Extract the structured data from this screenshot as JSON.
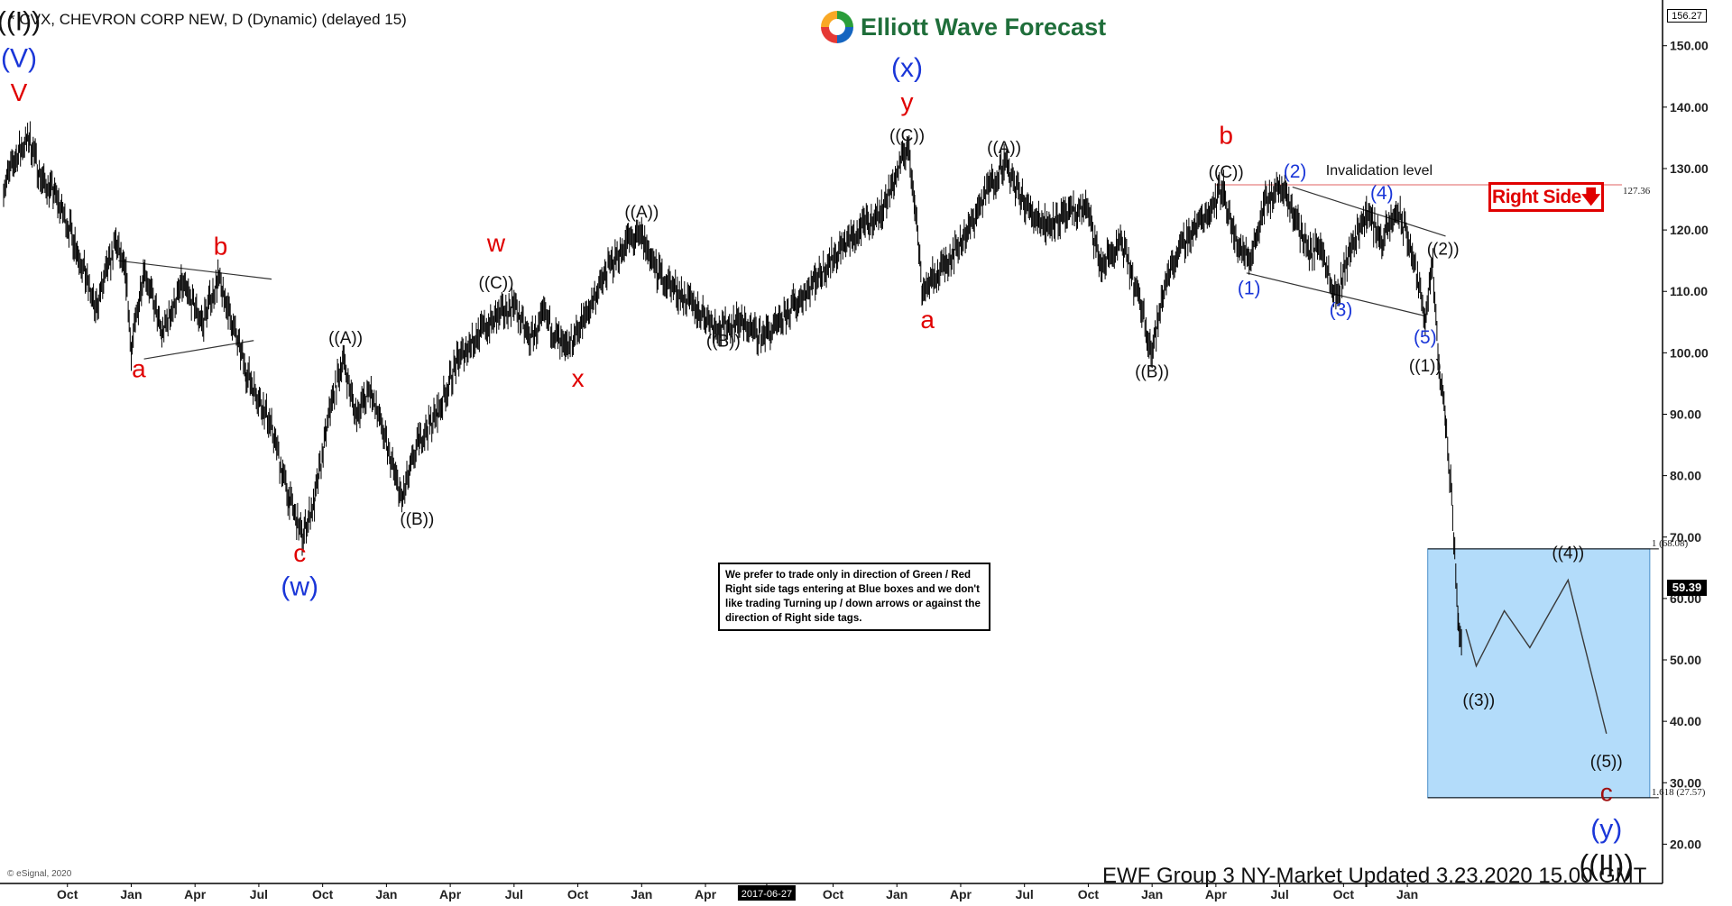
{
  "header": {
    "title": "* CVX, CHEVRON CORP NEW, D (Dynamic) (delayed 15)"
  },
  "logo": {
    "text": "Elliott Wave Forecast"
  },
  "note": {
    "text": "We prefer to trade only in direction of Green / Red Right side tags entering at Blue boxes and we don't like trading Turning up / down arrows or against the direction of Right side tags."
  },
  "right_side_tag": {
    "text": "Right Side",
    "arrow": "down-arrow-icon"
  },
  "footer": {
    "text": "EWF Group 3 NY-Market Updated 3.23.2020 15.00 GMT"
  },
  "copyright": "© eSignal, 2020",
  "colors": {
    "bullish_red": "#e00000",
    "wave_blue": "#1a36d8",
    "box_fill": "#b3dcfa",
    "box_border": "#4a8fc8",
    "price": "#000000"
  },
  "chart_data": {
    "type": "line",
    "style": "daily price bars with Elliott Wave labels",
    "y_range": [
      12,
      157
    ],
    "y_ticks": [
      "150.00",
      "140.00",
      "130.00",
      "120.00",
      "110.00",
      "100.00",
      "90.00",
      "80.00",
      "70.00",
      "60.00",
      "50.00",
      "40.00",
      "30.00",
      "20.00"
    ],
    "y_tick_values": [
      150,
      140,
      130,
      120,
      110,
      100,
      90,
      80,
      70,
      60,
      50,
      40,
      30,
      20
    ],
    "x_ticks": [
      "Oct",
      "Jan",
      "Apr",
      "Jul",
      "Oct",
      "Jan",
      "Apr",
      "Jul",
      "Oct",
      "Jan",
      "Apr",
      "2017-06-27",
      "Oct",
      "Jan",
      "Apr",
      "Jul",
      "Oct",
      "Jan",
      "Apr",
      "Jul",
      "Oct",
      "Jan"
    ],
    "x_tick_values": [
      2014.75,
      2015.0,
      2015.25,
      2015.5,
      2015.75,
      2016.0,
      2016.25,
      2016.5,
      2016.75,
      2017.0,
      2017.25,
      2017.49,
      2017.75,
      2018.0,
      2018.25,
      2018.5,
      2018.75,
      2019.0,
      2019.25,
      2019.5,
      2019.75,
      2020.0
    ],
    "x_range": [
      2014.5,
      2021.0
    ],
    "highlighted_x_tick": "2017-06-27",
    "current_price": "59.39",
    "top_price": "156.27",
    "invalidation": {
      "label": "Invalidation level",
      "value": 127.36,
      "value_label": "127.36"
    },
    "blue_box": {
      "top": 68.08,
      "bottom": 27.57,
      "top_label": "1 (68.08)",
      "bottom_label": "1.618 (27.57)",
      "x_start": 2020.08,
      "x_end": 2020.95
    },
    "price_path": [
      [
        2014.5,
        127
      ],
      [
        2014.55,
        132
      ],
      [
        2014.6,
        135
      ],
      [
        2014.65,
        128
      ],
      [
        2014.7,
        126
      ],
      [
        2014.78,
        118
      ],
      [
        2014.86,
        107
      ],
      [
        2014.94,
        118
      ],
      [
        2014.98,
        112
      ],
      [
        2015.0,
        100
      ],
      [
        2015.05,
        114
      ],
      [
        2015.12,
        103
      ],
      [
        2015.2,
        111
      ],
      [
        2015.28,
        105
      ],
      [
        2015.34,
        112
      ],
      [
        2015.38,
        107
      ],
      [
        2015.45,
        97
      ],
      [
        2015.55,
        88
      ],
      [
        2015.62,
        76
      ],
      [
        2015.67,
        70
      ],
      [
        2015.72,
        76
      ],
      [
        2015.78,
        91
      ],
      [
        2015.83,
        99
      ],
      [
        2015.88,
        90
      ],
      [
        2015.94,
        94
      ],
      [
        2016.0,
        85
      ],
      [
        2016.06,
        76
      ],
      [
        2016.13,
        86
      ],
      [
        2016.2,
        90
      ],
      [
        2016.28,
        99
      ],
      [
        2016.36,
        103
      ],
      [
        2016.44,
        106
      ],
      [
        2016.5,
        108
      ],
      [
        2016.56,
        102
      ],
      [
        2016.62,
        106
      ],
      [
        2016.7,
        100
      ],
      [
        2016.78,
        106
      ],
      [
        2016.86,
        113
      ],
      [
        2016.94,
        118
      ],
      [
        2017.0,
        119
      ],
      [
        2017.06,
        113
      ],
      [
        2017.14,
        110
      ],
      [
        2017.22,
        107
      ],
      [
        2017.3,
        104
      ],
      [
        2017.38,
        105
      ],
      [
        2017.46,
        103
      ],
      [
        2017.53,
        104
      ],
      [
        2017.6,
        108
      ],
      [
        2017.68,
        112
      ],
      [
        2017.78,
        117
      ],
      [
        2017.86,
        120
      ],
      [
        2017.94,
        123
      ],
      [
        2017.99,
        128
      ],
      [
        2018.04,
        134
      ],
      [
        2018.07,
        125
      ],
      [
        2018.1,
        110
      ],
      [
        2018.14,
        112
      ],
      [
        2018.2,
        115
      ],
      [
        2018.28,
        120
      ],
      [
        2018.36,
        127
      ],
      [
        2018.42,
        131
      ],
      [
        2018.5,
        124
      ],
      [
        2018.58,
        121
      ],
      [
        2018.66,
        122
      ],
      [
        2018.74,
        124
      ],
      [
        2018.8,
        114
      ],
      [
        2018.88,
        118
      ],
      [
        2018.96,
        107
      ],
      [
        2019.0,
        100
      ],
      [
        2019.06,
        113
      ],
      [
        2019.14,
        119
      ],
      [
        2019.22,
        123
      ],
      [
        2019.28,
        127
      ],
      [
        2019.32,
        119
      ],
      [
        2019.38,
        115
      ],
      [
        2019.44,
        124
      ],
      [
        2019.5,
        127
      ],
      [
        2019.56,
        122
      ],
      [
        2019.62,
        116
      ],
      [
        2019.66,
        118
      ],
      [
        2019.72,
        109
      ],
      [
        2019.78,
        117
      ],
      [
        2019.84,
        123
      ],
      [
        2019.9,
        118
      ],
      [
        2019.96,
        123
      ],
      [
        2020.0,
        119
      ],
      [
        2020.04,
        112
      ],
      [
        2020.07,
        106
      ],
      [
        2020.1,
        114
      ],
      [
        2020.12,
        99
      ],
      [
        2020.15,
        89
      ],
      [
        2020.17,
        78
      ],
      [
        2020.19,
        65
      ],
      [
        2020.2,
        55
      ],
      [
        2020.215,
        52
      ]
    ],
    "projection_path": [
      [
        2020.23,
        55
      ],
      [
        2020.27,
        49
      ],
      [
        2020.38,
        58
      ],
      [
        2020.48,
        52
      ],
      [
        2020.63,
        63
      ],
      [
        2020.78,
        38
      ]
    ],
    "trendlines": [
      [
        [
          2014.95,
          115
        ],
        [
          2015.55,
          112
        ]
      ],
      [
        [
          2015.05,
          99
        ],
        [
          2015.48,
          102
        ]
      ],
      [
        [
          2019.37,
          113
        ],
        [
          2020.07,
          106
        ]
      ],
      [
        [
          2019.55,
          127
        ],
        [
          2020.15,
          119
        ]
      ]
    ],
    "wave_labels": [
      {
        "t": "((I))",
        "x": 2014.56,
        "y": 152.5,
        "c": "black",
        "s": 30
      },
      {
        "t": "(V)",
        "x": 2014.56,
        "y": 146.5,
        "c": "blue",
        "s": 30
      },
      {
        "t": "V",
        "x": 2014.56,
        "y": 141,
        "c": "red",
        "s": 28
      },
      {
        "t": "a",
        "x": 2015.03,
        "y": 96,
        "c": "red",
        "s": 28
      },
      {
        "t": "b",
        "x": 2015.35,
        "y": 116,
        "c": "red",
        "s": 28
      },
      {
        "t": "c",
        "x": 2015.66,
        "y": 66,
        "c": "red",
        "s": 28
      },
      {
        "t": "(w)",
        "x": 2015.66,
        "y": 60.5,
        "c": "blue",
        "s": 30
      },
      {
        "t": "((A))",
        "x": 2015.84,
        "y": 101.5,
        "c": "black",
        "s": 19
      },
      {
        "t": "((B))",
        "x": 2016.12,
        "y": 72,
        "c": "black",
        "s": 19
      },
      {
        "t": "((C))",
        "x": 2016.43,
        "y": 110.5,
        "c": "black",
        "s": 19
      },
      {
        "t": "w",
        "x": 2016.43,
        "y": 116.5,
        "c": "red",
        "s": 28
      },
      {
        "t": "x",
        "x": 2016.75,
        "y": 94.5,
        "c": "red",
        "s": 28
      },
      {
        "t": "((A))",
        "x": 2017.0,
        "y": 122,
        "c": "black",
        "s": 19
      },
      {
        "t": "((B))",
        "x": 2017.32,
        "y": 101,
        "c": "black",
        "s": 19
      },
      {
        "t": "(x)",
        "x": 2018.04,
        "y": 145,
        "c": "blue",
        "s": 30
      },
      {
        "t": "y",
        "x": 2018.04,
        "y": 139.5,
        "c": "red",
        "s": 28
      },
      {
        "t": "((C))",
        "x": 2018.04,
        "y": 134.5,
        "c": "black",
        "s": 19
      },
      {
        "t": "a",
        "x": 2018.12,
        "y": 104,
        "c": "red",
        "s": 28
      },
      {
        "t": "((A))",
        "x": 2018.42,
        "y": 132.5,
        "c": "black",
        "s": 19
      },
      {
        "t": "((B))",
        "x": 2019.0,
        "y": 96,
        "c": "black",
        "s": 19
      },
      {
        "t": "b",
        "x": 2019.29,
        "y": 134,
        "c": "red",
        "s": 28
      },
      {
        "t": "((C))",
        "x": 2019.29,
        "y": 128.5,
        "c": "black",
        "s": 19
      },
      {
        "t": "(1)",
        "x": 2019.38,
        "y": 109.5,
        "c": "blue",
        "s": 21
      },
      {
        "t": "(2)",
        "x": 2019.56,
        "y": 128.5,
        "c": "blue",
        "s": 21
      },
      {
        "t": "(3)",
        "x": 2019.74,
        "y": 106,
        "c": "blue",
        "s": 21
      },
      {
        "t": "(4)",
        "x": 2019.9,
        "y": 125,
        "c": "blue",
        "s": 21
      },
      {
        "t": "(5)",
        "x": 2020.07,
        "y": 101.5,
        "c": "blue",
        "s": 21
      },
      {
        "t": "((1))",
        "x": 2020.07,
        "y": 97,
        "c": "black",
        "s": 19
      },
      {
        "t": "((2))",
        "x": 2020.14,
        "y": 116,
        "c": "black",
        "s": 19
      },
      {
        "t": "((3))",
        "x": 2020.28,
        "y": 42.5,
        "c": "black",
        "s": 19
      },
      {
        "t": "((4))",
        "x": 2020.63,
        "y": 66.5,
        "c": "black",
        "s": 19
      },
      {
        "t": "((5))",
        "x": 2020.78,
        "y": 32.5,
        "c": "black",
        "s": 19
      },
      {
        "t": "c",
        "x": 2020.78,
        "y": 27,
        "c": "darkred",
        "s": 28
      },
      {
        "t": "(y)",
        "x": 2020.78,
        "y": 21,
        "c": "blue",
        "s": 30
      },
      {
        "t": "((II))",
        "x": 2020.78,
        "y": 15,
        "c": "black",
        "s": 32
      }
    ]
  }
}
